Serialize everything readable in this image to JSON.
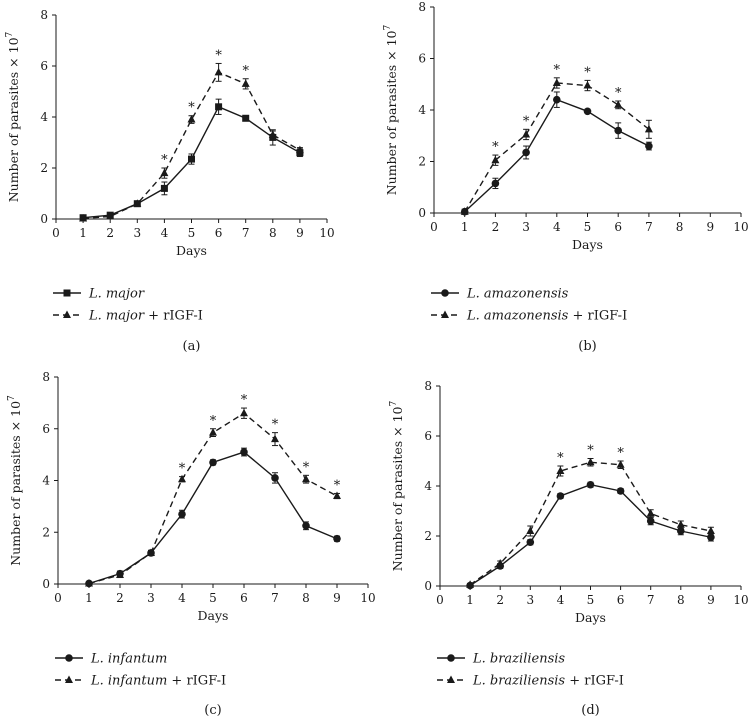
{
  "chart_data": [
    {
      "type": "line",
      "panel_label": "(a)",
      "xlabel": "Days",
      "ylabel": "Number of parasites × 10",
      "ylabel_exp": "7",
      "xlim": [
        0,
        10
      ],
      "ylim": [
        0,
        8
      ],
      "xticks": [
        "0",
        "1",
        "2",
        "3",
        "4",
        "5",
        "6",
        "7",
        "8",
        "9",
        "10"
      ],
      "yticks": [
        "0",
        "2",
        "4",
        "6",
        "8"
      ],
      "series": [
        {
          "species": "L. major",
          "suffix": "",
          "marker": "square",
          "dashed": false,
          "x": [
            1,
            2,
            3,
            4,
            5,
            6,
            7,
            8,
            9
          ],
          "y": [
            0.05,
            0.15,
            0.6,
            1.2,
            2.35,
            4.4,
            3.95,
            3.2,
            2.6
          ],
          "err": [
            0.1,
            0.1,
            0.1,
            0.25,
            0.2,
            0.3,
            0.1,
            0.3,
            0.15
          ]
        },
        {
          "species": "L. major",
          "suffix": " + rIGF-I",
          "marker": "triangle",
          "dashed": true,
          "x": [
            1,
            2,
            3,
            4,
            5,
            6,
            7,
            8,
            9
          ],
          "y": [
            0.02,
            0.1,
            0.6,
            1.8,
            3.9,
            5.75,
            5.3,
            3.3,
            2.7
          ],
          "err": [
            0.05,
            0.05,
            0.1,
            0.2,
            0.15,
            0.35,
            0.2,
            0.15,
            0.1
          ]
        }
      ],
      "significance_x": [
        4,
        5,
        6,
        7
      ],
      "significance_symbol": "*"
    },
    {
      "type": "line",
      "panel_label": "(b)",
      "xlabel": "Days",
      "ylabel": "Number of parasites × 10",
      "ylabel_exp": "7",
      "xlim": [
        0,
        10
      ],
      "ylim": [
        0,
        8
      ],
      "xticks": [
        "0",
        "1",
        "2",
        "3",
        "4",
        "5",
        "6",
        "7",
        "8",
        "9",
        "10"
      ],
      "yticks": [
        "0",
        "2",
        "4",
        "6",
        "8"
      ],
      "series": [
        {
          "species": "L. amazonensis",
          "suffix": "",
          "marker": "circle",
          "dashed": false,
          "x": [
            1,
            2,
            3,
            4,
            5,
            6,
            7
          ],
          "y": [
            0.05,
            1.15,
            2.35,
            4.4,
            3.95,
            3.2,
            2.6
          ],
          "err": [
            0.1,
            0.2,
            0.25,
            0.3,
            0.05,
            0.3,
            0.15
          ]
        },
        {
          "species": "L. amazonensis",
          "suffix": " + rIGF-I",
          "marker": "triangle",
          "dashed": true,
          "x": [
            1,
            2,
            3,
            4,
            5,
            6,
            7
          ],
          "y": [
            0.05,
            2.05,
            3.05,
            5.05,
            4.95,
            4.2,
            3.25
          ],
          "err": [
            0.05,
            0.2,
            0.2,
            0.2,
            0.2,
            0.15,
            0.35
          ]
        }
      ],
      "significance_x": [
        2,
        3,
        4,
        5,
        6
      ],
      "significance_symbol": "*"
    },
    {
      "type": "line",
      "panel_label": "(c)",
      "xlabel": "Days",
      "ylabel": "Number of parasites × 10",
      "ylabel_exp": "7",
      "xlim": [
        0,
        10
      ],
      "ylim": [
        0,
        8
      ],
      "xticks": [
        "0",
        "1",
        "2",
        "3",
        "4",
        "5",
        "6",
        "7",
        "8",
        "9",
        "10"
      ],
      "yticks": [
        "0",
        "2",
        "4",
        "6",
        "8"
      ],
      "series": [
        {
          "species": "L. infantum",
          "suffix": "",
          "marker": "circle",
          "dashed": false,
          "x": [
            1,
            2,
            3,
            4,
            5,
            6,
            7,
            8,
            9
          ],
          "y": [
            0.02,
            0.4,
            1.2,
            2.7,
            4.7,
            5.1,
            4.1,
            2.25,
            1.75
          ],
          "err": [
            0.05,
            0.1,
            0.1,
            0.15,
            0.1,
            0.15,
            0.2,
            0.15,
            0.1
          ]
        },
        {
          "species": "L. infantum",
          "suffix": " + rIGF-I",
          "marker": "triangle",
          "dashed": true,
          "x": [
            1,
            2,
            3,
            4,
            5,
            6,
            7,
            8,
            9
          ],
          "y": [
            0.02,
            0.35,
            1.2,
            4.05,
            5.85,
            6.6,
            5.6,
            4.05,
            3.4
          ],
          "err": [
            0.05,
            0.1,
            0.1,
            0.1,
            0.15,
            0.2,
            0.25,
            0.15,
            0.1
          ]
        }
      ],
      "significance_x": [
        4,
        5,
        6,
        7,
        8,
        9
      ],
      "significance_symbol": "*"
    },
    {
      "type": "line",
      "panel_label": "(d)",
      "xlabel": "Days",
      "ylabel": "Number of parasites × 10",
      "ylabel_exp": "7",
      "xlim": [
        0,
        10
      ],
      "ylim": [
        0,
        8
      ],
      "xticks": [
        "0",
        "1",
        "2",
        "3",
        "4",
        "5",
        "6",
        "7",
        "8",
        "9",
        "10"
      ],
      "yticks": [
        "0",
        "2",
        "4",
        "6",
        "8"
      ],
      "series": [
        {
          "species": "L. braziliensis",
          "suffix": "",
          "marker": "circle",
          "dashed": false,
          "x": [
            1,
            2,
            3,
            4,
            5,
            6,
            7,
            8,
            9
          ],
          "y": [
            0.02,
            0.8,
            1.75,
            3.6,
            4.05,
            3.8,
            2.6,
            2.2,
            1.95
          ],
          "err": [
            0.05,
            0.1,
            0.1,
            0.1,
            0.1,
            0.1,
            0.15,
            0.15,
            0.15
          ]
        },
        {
          "species": "L. braziliensis",
          "suffix": " + rIGF-I",
          "marker": "triangle",
          "dashed": true,
          "x": [
            1,
            2,
            3,
            4,
            5,
            6,
            7,
            8,
            9
          ],
          "y": [
            0.05,
            0.9,
            2.2,
            4.6,
            4.95,
            4.85,
            2.9,
            2.45,
            2.2
          ],
          "err": [
            0.05,
            0.1,
            0.2,
            0.2,
            0.15,
            0.15,
            0.15,
            0.15,
            0.15
          ]
        }
      ],
      "significance_x": [
        4,
        5,
        6
      ],
      "significance_symbol": "*"
    }
  ]
}
